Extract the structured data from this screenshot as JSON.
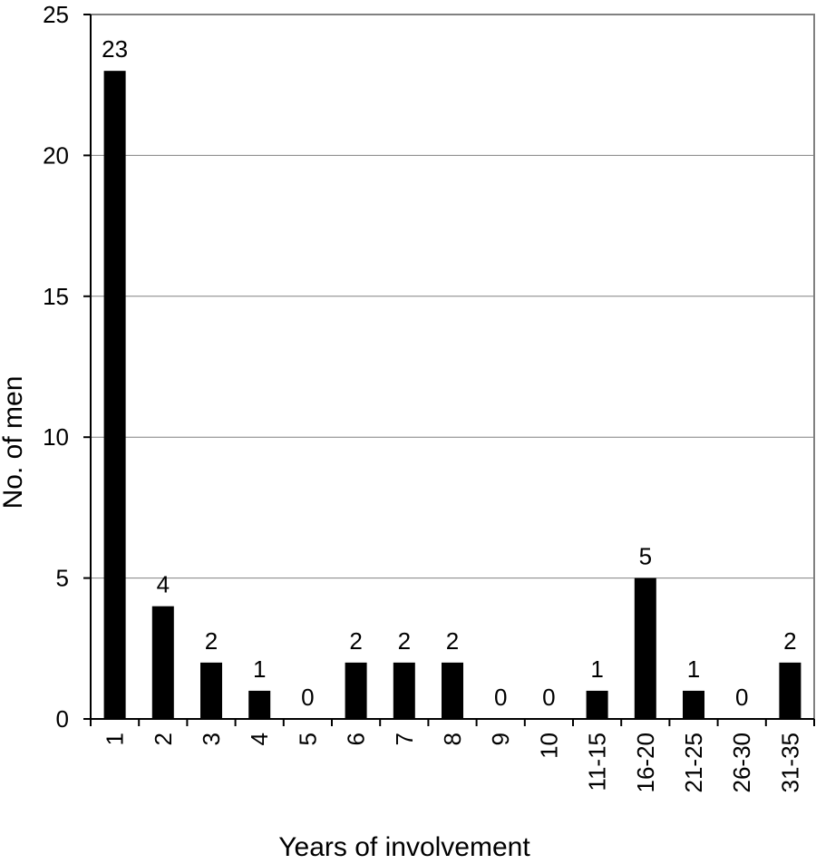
{
  "chart_data": {
    "type": "bar",
    "xlabel": "Years of involvement",
    "ylabel": "No. of men",
    "categories": [
      "1",
      "2",
      "3",
      "4",
      "5",
      "6",
      "7",
      "8",
      "9",
      "10",
      "11-15",
      "16-20",
      "21-25",
      "26-30",
      "31-35"
    ],
    "values": [
      23,
      4,
      2,
      1,
      0,
      2,
      2,
      2,
      0,
      0,
      1,
      5,
      1,
      0,
      2
    ],
    "data_labels": [
      "23",
      "4",
      "2",
      "1",
      "0",
      "2",
      "2",
      "2",
      "0",
      "0",
      "1",
      "5",
      "1",
      "0",
      "2"
    ],
    "ylim": [
      0,
      25
    ],
    "yticks": [
      0,
      5,
      10,
      15,
      20,
      25
    ],
    "ytick_labels": [
      "0",
      "5",
      "10",
      "15",
      "20",
      "25"
    ],
    "grid": true,
    "legend": false,
    "colors": {
      "bar": "#000000",
      "gridline": "#808080",
      "frame": "#808080",
      "axis": "#000000",
      "background": "#ffffff"
    }
  }
}
